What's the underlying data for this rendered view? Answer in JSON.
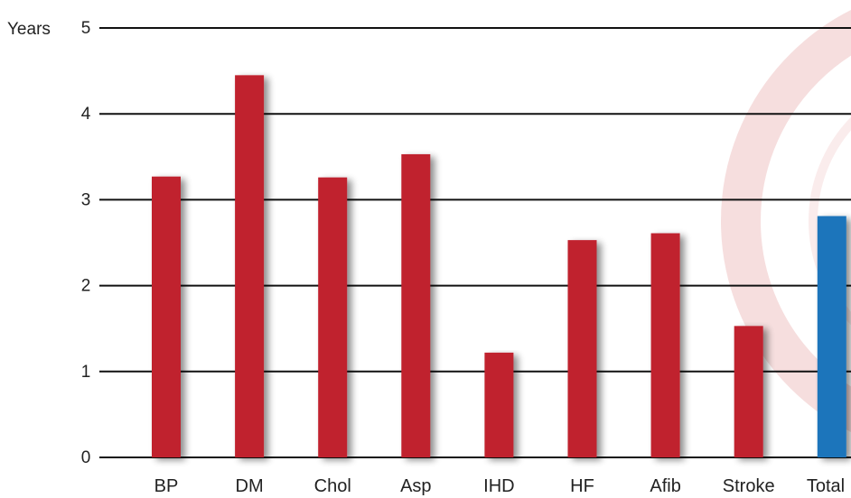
{
  "chart_data": {
    "type": "bar",
    "ylabel": "Years",
    "ylim": [
      0,
      5
    ],
    "yticks": [
      "0",
      "1",
      "2",
      "3",
      "4",
      "5"
    ],
    "grid": true,
    "categories": [
      "BP",
      "DM",
      "Chol",
      "Asp",
      "IHD",
      "HF",
      "Afib",
      "Stroke",
      "Total"
    ],
    "values": [
      3.27,
      4.45,
      3.26,
      3.53,
      1.22,
      2.53,
      2.61,
      1.53,
      2.81
    ],
    "bar_colors": [
      "#c0202f",
      "#c0202f",
      "#c0202f",
      "#c0202f",
      "#c0202f",
      "#c0202f",
      "#c0202f",
      "#c0202f",
      "#1b75bb"
    ]
  }
}
